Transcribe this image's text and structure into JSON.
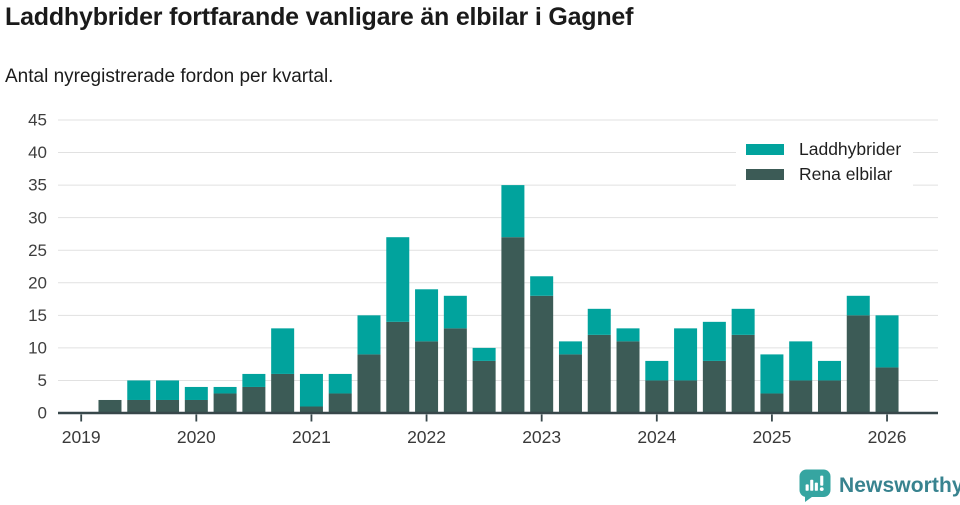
{
  "header": {
    "title": "Laddhybrider fortfarande vanligare än elbilar i Gagnef",
    "subtitle": "Antal nyregistrerade fordon per kvartal."
  },
  "chart_data": {
    "type": "bar",
    "stacked": true,
    "title": "Laddhybrider fortfarande vanligare än elbilar i Gagnef",
    "subtitle": "Antal nyregistrerade fordon per kvartal.",
    "xlabel": "",
    "ylabel": "",
    "ylim": [
      0,
      45
    ],
    "y_tick_step": 5,
    "grid": true,
    "legend_position": "top-right",
    "categories": [
      "2019 Q2",
      "2019 Q3",
      "2019 Q4",
      "2020 Q1",
      "2020 Q2",
      "2020 Q3",
      "2020 Q4",
      "2021 Q1",
      "2021 Q2",
      "2021 Q3",
      "2021 Q4",
      "2022 Q1",
      "2022 Q2",
      "2022 Q3",
      "2022 Q4",
      "2023 Q1",
      "2023 Q2",
      "2023 Q3",
      "2023 Q4",
      "2024 Q1",
      "2024 Q2",
      "2024 Q3",
      "2024 Q4",
      "2025 Q1",
      "2025 Q2",
      "2025 Q3",
      "2025 Q4",
      "2026 Q1"
    ],
    "series": [
      {
        "name": "Laddhybrider",
        "color": "#01A39D",
        "stack": "top",
        "values": [
          0,
          3,
          3,
          2,
          1,
          2,
          7,
          5,
          3,
          6,
          13,
          8,
          5,
          2,
          8,
          3,
          2,
          4,
          2,
          3,
          8,
          6,
          4,
          6,
          6,
          3,
          3,
          8
        ]
      },
      {
        "name": "Rena elbilar",
        "color": "#3C5B56",
        "stack": "bottom",
        "values": [
          2,
          2,
          2,
          2,
          3,
          4,
          6,
          1,
          3,
          9,
          14,
          11,
          13,
          8,
          27,
          18,
          9,
          12,
          11,
          5,
          5,
          8,
          12,
          3,
          5,
          5,
          15,
          7
        ]
      }
    ],
    "totals": [
      2,
      5,
      5,
      4,
      4,
      6,
      13,
      6,
      6,
      15,
      27,
      19,
      18,
      10,
      35,
      21,
      11,
      16,
      13,
      8,
      13,
      14,
      16,
      9,
      11,
      8,
      18,
      15
    ],
    "x_ticks": [
      {
        "label": "2019",
        "index": -1
      },
      {
        "label": "2020",
        "index": 3
      },
      {
        "label": "2021",
        "index": 7
      },
      {
        "label": "2022",
        "index": 11
      },
      {
        "label": "2023",
        "index": 15
      },
      {
        "label": "2024",
        "index": 19
      },
      {
        "label": "2025",
        "index": 23
      },
      {
        "label": "2026",
        "index": 27
      }
    ]
  },
  "footer": {
    "brand": "Newsworthy",
    "brand_icon_color": "#36A5A1",
    "brand_text_color": "#38838F"
  }
}
